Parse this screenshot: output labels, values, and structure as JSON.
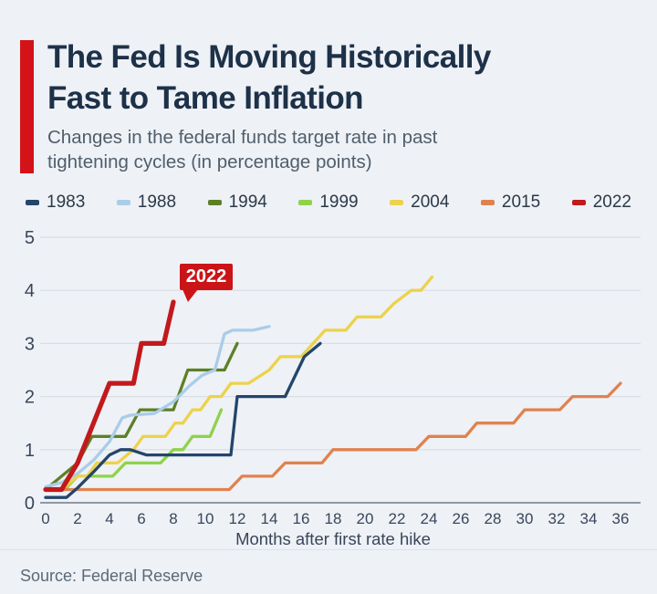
{
  "header": {
    "title_lines": [
      "The Fed Is Moving Historically",
      "Fast to Tame Inflation"
    ],
    "subtitle_lines": [
      "Changes in the federal funds target rate in past",
      "tightening cycles (in percentage points)"
    ],
    "accent_color": "#d41318"
  },
  "footer": {
    "source": "Source: Federal Reserve"
  },
  "chart_data": {
    "type": "line",
    "title": "The Fed Is Moving Historically Fast to Tame Inflation",
    "subtitle": "Changes in the federal funds target rate in past tightening cycles (in percentage points)",
    "xlabel": "Months after first rate hike",
    "ylabel": "",
    "xlim": [
      0,
      36
    ],
    "ylim": [
      0,
      5
    ],
    "xticks": [
      0,
      2,
      4,
      6,
      8,
      10,
      12,
      14,
      16,
      18,
      20,
      22,
      24,
      26,
      28,
      30,
      32,
      34,
      36
    ],
    "yticks": [
      0,
      1,
      2,
      3,
      4,
      5
    ],
    "grid": "horizontal",
    "legend_position": "top",
    "colors": {
      "grid": "#d9dee4",
      "axis": "#6f7a86",
      "tick_text": "#39465a"
    },
    "draw_order": [
      "1999",
      "1994",
      "1988",
      "2004",
      "2015",
      "1983",
      "2022"
    ],
    "series": [
      {
        "name": "1983",
        "color": "#24456b",
        "points": [
          [
            0,
            0.1
          ],
          [
            1.3,
            0.1
          ],
          [
            2,
            0.28
          ],
          [
            3,
            0.58
          ],
          [
            4,
            0.9
          ],
          [
            4.7,
            1.0
          ],
          [
            5.3,
            1.0
          ],
          [
            6.3,
            0.9
          ],
          [
            11.6,
            0.9
          ],
          [
            12,
            2.0
          ],
          [
            15,
            2.0
          ],
          [
            16.2,
            2.75
          ],
          [
            17.2,
            3.0
          ]
        ]
      },
      {
        "name": "1988",
        "color": "#a9cde9",
        "points": [
          [
            0,
            0.3
          ],
          [
            1,
            0.38
          ],
          [
            2,
            0.55
          ],
          [
            3,
            0.8
          ],
          [
            4,
            1.15
          ],
          [
            4.8,
            1.6
          ],
          [
            5.3,
            1.65
          ],
          [
            6.8,
            1.68
          ],
          [
            8,
            1.9
          ],
          [
            9,
            2.2
          ],
          [
            9.8,
            2.4
          ],
          [
            10.6,
            2.5
          ],
          [
            11.2,
            3.18
          ],
          [
            11.7,
            3.25
          ],
          [
            13,
            3.25
          ],
          [
            14,
            3.32
          ]
        ]
      },
      {
        "name": "1994",
        "color": "#5d8026",
        "points": [
          [
            0,
            0.25
          ],
          [
            1,
            0.5
          ],
          [
            2,
            0.75
          ],
          [
            2.9,
            1.25
          ],
          [
            5,
            1.25
          ],
          [
            5.9,
            1.75
          ],
          [
            8,
            1.75
          ],
          [
            8.9,
            2.5
          ],
          [
            11.2,
            2.5
          ],
          [
            12,
            3.0
          ]
        ]
      },
      {
        "name": "1999",
        "color": "#8fd24b",
        "points": [
          [
            0,
            0.25
          ],
          [
            1.2,
            0.25
          ],
          [
            2,
            0.5
          ],
          [
            4.2,
            0.5
          ],
          [
            5,
            0.75
          ],
          [
            7.2,
            0.75
          ],
          [
            8,
            1.0
          ],
          [
            8.6,
            1.0
          ],
          [
            9.2,
            1.25
          ],
          [
            10.3,
            1.25
          ],
          [
            11,
            1.75
          ]
        ]
      },
      {
        "name": "2004",
        "color": "#edd24b",
        "points": [
          [
            0,
            0.25
          ],
          [
            1,
            0.25
          ],
          [
            2,
            0.5
          ],
          [
            2.6,
            0.5
          ],
          [
            3.2,
            0.75
          ],
          [
            4.5,
            0.75
          ],
          [
            5.5,
            1.0
          ],
          [
            6.1,
            1.25
          ],
          [
            7.5,
            1.25
          ],
          [
            8.1,
            1.5
          ],
          [
            8.6,
            1.5
          ],
          [
            9.2,
            1.75
          ],
          [
            9.7,
            1.75
          ],
          [
            10.3,
            2.0
          ],
          [
            11,
            2.0
          ],
          [
            11.6,
            2.25
          ],
          [
            12.7,
            2.25
          ],
          [
            14,
            2.5
          ],
          [
            14.7,
            2.75
          ],
          [
            16,
            2.75
          ],
          [
            17.5,
            3.25
          ],
          [
            18.8,
            3.25
          ],
          [
            19.5,
            3.5
          ],
          [
            21,
            3.5
          ],
          [
            21.8,
            3.75
          ],
          [
            22.9,
            4.0
          ],
          [
            23.5,
            4.0
          ],
          [
            24.2,
            4.25
          ]
        ]
      },
      {
        "name": "2015",
        "color": "#e0824e",
        "points": [
          [
            0,
            0.25
          ],
          [
            11.5,
            0.25
          ],
          [
            12.3,
            0.5
          ],
          [
            14.2,
            0.5
          ],
          [
            15,
            0.75
          ],
          [
            17.3,
            0.75
          ],
          [
            18,
            1.0
          ],
          [
            23.2,
            1.0
          ],
          [
            24,
            1.25
          ],
          [
            26.3,
            1.25
          ],
          [
            27,
            1.5
          ],
          [
            29.3,
            1.5
          ],
          [
            30,
            1.75
          ],
          [
            32.2,
            1.75
          ],
          [
            33,
            2.0
          ],
          [
            35.2,
            2.0
          ],
          [
            36,
            2.25
          ]
        ]
      },
      {
        "name": "2022",
        "color": "#c2191c",
        "emphasis": true,
        "points": [
          [
            0,
            0.25
          ],
          [
            1,
            0.25
          ],
          [
            2,
            0.75
          ],
          [
            3,
            1.5
          ],
          [
            4,
            2.25
          ],
          [
            5.5,
            2.25
          ],
          [
            6,
            3.0
          ],
          [
            7.4,
            3.0
          ],
          [
            8,
            3.78
          ]
        ]
      }
    ],
    "annotation": {
      "label": "2022",
      "bg": "#cb1418",
      "text_color": "#ffffff",
      "series": "2022"
    }
  }
}
